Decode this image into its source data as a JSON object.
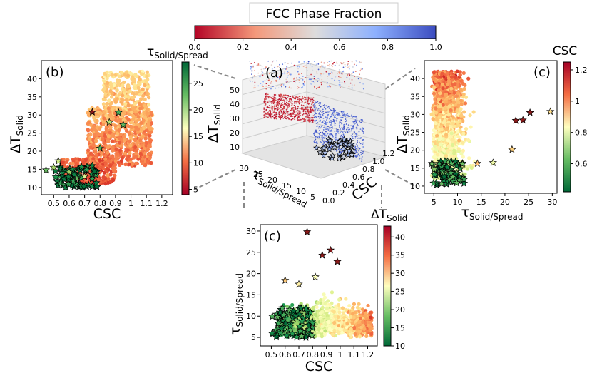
{
  "figure": {
    "main_colorbar": {
      "title": "FCC Phase Fraction",
      "ticks": [
        "0.0",
        "0.2",
        "0.4",
        "0.6",
        "0.8",
        "1.0"
      ]
    },
    "colors": {
      "red": "#c9202a",
      "blue": "#3a4cc0",
      "green": "#006837",
      "yellow": "#ffffbf"
    }
  },
  "chart_data": [
    {
      "panel": "(a)",
      "type": "scatter",
      "projection": "3d",
      "xlabel": "CSC",
      "ylabel": "τ",
      "ylabel_sub": "Solid/Spread",
      "zlabel": "ΔT",
      "zlabel_sub": "Solid",
      "x_ticks": [
        "0.0",
        "0.2",
        "0.4",
        "0.6",
        "0.8",
        "1.0",
        "1.2"
      ],
      "y_ticks": [
        "30",
        "25",
        "20",
        "15",
        "10",
        "5"
      ],
      "z_ticks": [
        "10",
        "20",
        "30",
        "40",
        "50"
      ],
      "color_by": "FCC Phase Fraction"
    },
    {
      "panel": "(b)",
      "type": "scatter",
      "xlabel": "CSC",
      "ylabel": "ΔT",
      "ylabel_sub": "Solid",
      "xlim": [
        0.42,
        1.27
      ],
      "ylim": [
        8,
        45
      ],
      "x_ticks": [
        0.5,
        0.6,
        0.7,
        0.8,
        0.9,
        1.0,
        1.1,
        1.2
      ],
      "y_ticks": [
        10,
        15,
        20,
        25,
        30,
        35,
        40
      ],
      "colorbar": {
        "label": "τ",
        "label_sub": "Solid/Spread",
        "min": 4,
        "max": 29,
        "ticks": [
          5,
          10,
          15,
          20,
          25
        ],
        "cmap": "RdYlGn"
      },
      "stars_sample": [
        [
          0.45,
          14.8
        ],
        [
          0.5,
          15.5
        ],
        [
          0.53,
          17.3
        ],
        [
          0.6,
          14.2
        ],
        [
          0.65,
          12.5
        ],
        [
          0.7,
          13.0
        ],
        [
          0.75,
          30.8
        ],
        [
          0.8,
          20.8
        ],
        [
          0.86,
          28.0
        ],
        [
          0.92,
          30.7
        ],
        [
          0.95,
          27.3
        ]
      ]
    },
    {
      "panel": "(c)",
      "type": "scatter",
      "xlabel": "τ",
      "xlabel_sub": "Solid/Spread",
      "ylabel": "ΔT",
      "ylabel_sub": "Solid",
      "xlim": [
        3,
        31
      ],
      "ylim": [
        8,
        45
      ],
      "x_ticks": [
        5,
        10,
        15,
        20,
        25,
        30
      ],
      "y_ticks": [
        10,
        15,
        20,
        25,
        30,
        35,
        40
      ],
      "colorbar": {
        "label": "CSC",
        "min": 0.42,
        "max": 1.25,
        "ticks": [
          0.6,
          0.8,
          1.0,
          1.2
        ],
        "cmap": "RdYlGn_r"
      },
      "stars_sample": [
        [
          22.3,
          28.3
        ],
        [
          23.8,
          28.4
        ],
        [
          25.3,
          30.5
        ],
        [
          29.6,
          30.8
        ],
        [
          21.5,
          20.2
        ],
        [
          17.5,
          16.5
        ],
        [
          14.2,
          16.3
        ]
      ]
    },
    {
      "panel": "(c)",
      "type": "scatter",
      "xlabel": "CSC",
      "ylabel": "τ",
      "ylabel_sub": "Solid/Spread",
      "xlim": [
        0.42,
        1.27
      ],
      "ylim": [
        3,
        31.5
      ],
      "x_ticks": [
        0.5,
        0.6,
        0.7,
        0.8,
        0.9,
        1.0,
        1.1,
        1.2
      ],
      "y_ticks": [
        5,
        10,
        15,
        20,
        25,
        30
      ],
      "colorbar": {
        "label": "ΔT",
        "label_sub": "Solid",
        "min": 10,
        "max": 43,
        "ticks": [
          10,
          15,
          20,
          25,
          30,
          35,
          40
        ],
        "cmap": "RdYlGn_r"
      },
      "stars_sample": [
        [
          0.76,
          29.8
        ],
        [
          0.87,
          24.3
        ],
        [
          0.93,
          25.5
        ],
        [
          0.98,
          22.8
        ],
        [
          0.6,
          18.4
        ],
        [
          0.7,
          17.5
        ],
        [
          0.82,
          19.2
        ]
      ]
    }
  ]
}
